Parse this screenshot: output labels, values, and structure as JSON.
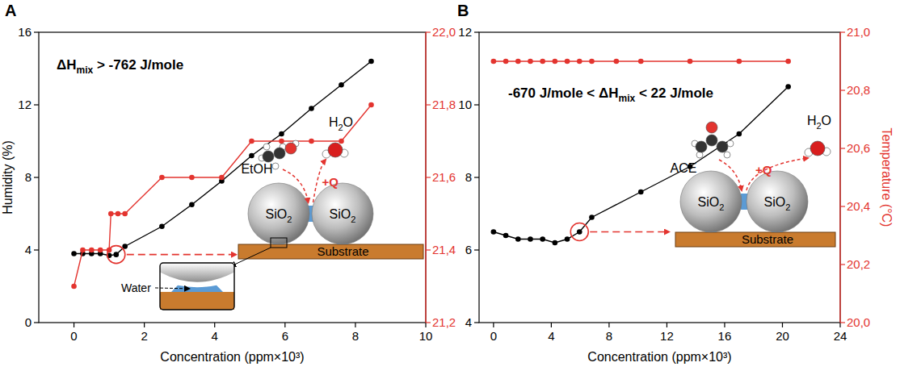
{
  "chart_data": [
    {
      "type": "line",
      "panel_label": "A",
      "x_label": "Concentration (ppm×10³)",
      "y_label": "Humidity (%)",
      "xlim": [
        -1,
        10
      ],
      "xticks": [
        0,
        2,
        4,
        6,
        8,
        10
      ],
      "ylim": [
        0,
        16
      ],
      "yticks": [
        0,
        4,
        8,
        12,
        16
      ],
      "y2lim": [
        21.2,
        22.0
      ],
      "y2ticks": [
        {
          "value": 21.2,
          "label": "21,2"
        },
        {
          "value": 21.4,
          "label": "21,4"
        },
        {
          "value": 21.6,
          "label": "21,6"
        },
        {
          "value": 21.8,
          "label": "21,8"
        },
        {
          "value": 22.0,
          "label": "22,0"
        }
      ],
      "grid": false,
      "series": [
        {
          "color": "#000000",
          "marker": "circle",
          "line_style": "solid",
          "x": [
            0,
            0.25,
            0.5,
            0.75,
            1.0,
            1.2,
            1.45,
            2.5,
            3.35,
            4.2,
            5.05,
            5.9,
            6.75,
            7.6,
            8.45
          ],
          "values": [
            3.8,
            3.8,
            3.8,
            3.8,
            3.7,
            3.75,
            4.2,
            5.3,
            6.5,
            7.8,
            9.2,
            10.4,
            11.8,
            13.1,
            14.4
          ]
        },
        {
          "color": "#e3342f",
          "marker": "circle",
          "line_style": "solid",
          "axis": "y2",
          "x": [
            0,
            0.25,
            0.5,
            0.75,
            1.0,
            1.05,
            1.25,
            1.45,
            2.5,
            3.35,
            4.2,
            5.05,
            5.9,
            6.75,
            7.6,
            8.45
          ],
          "values": [
            21.3,
            21.4,
            21.4,
            21.4,
            21.4,
            21.5,
            21.5,
            21.5,
            21.6,
            21.6,
            21.6,
            21.7,
            21.7,
            21.7,
            21.7,
            21.8
          ]
        }
      ],
      "annotations": {
        "enthalpy": {
          "prefix": "ΔH",
          "subscript": "mix",
          "suffix": " > -762 J/mole"
        },
        "molecule": "EtOH",
        "product": {
          "prefix": "H",
          "subscript": "2",
          "suffix": "O"
        },
        "heat": "+Q",
        "particle": {
          "prefix": "SiO",
          "subscript": "2"
        },
        "substrate": "Substrate",
        "water": "Water"
      }
    },
    {
      "type": "line",
      "panel_label": "B",
      "x_label": "Concentration (ppm×10³)",
      "y2_label": "Temperature (°C)",
      "xlim": [
        -1,
        24
      ],
      "xticks": [
        0,
        4,
        8,
        12,
        16,
        20,
        24
      ],
      "ylim": [
        4,
        12
      ],
      "yticks": [
        4,
        6,
        8,
        10,
        12
      ],
      "y2lim": [
        20.0,
        21.0
      ],
      "y2ticks": [
        {
          "value": 20.0,
          "label": "20,0"
        },
        {
          "value": 20.2,
          "label": "20,2"
        },
        {
          "value": 20.4,
          "label": "20,4"
        },
        {
          "value": 20.6,
          "label": "20,6"
        },
        {
          "value": 20.8,
          "label": "20,8"
        },
        {
          "value": 21.0,
          "label": "21,0"
        }
      ],
      "grid": false,
      "series": [
        {
          "color": "#000000",
          "marker": "circle",
          "line_style": "solid",
          "x": [
            0,
            0.85,
            1.7,
            2.55,
            3.4,
            4.25,
            5.1,
            5.95,
            6.8,
            10.2,
            13.6,
            17,
            20.4
          ],
          "values": [
            6.5,
            6.4,
            6.3,
            6.3,
            6.3,
            6.2,
            6.3,
            6.5,
            6.9,
            7.6,
            8.3,
            9.2,
            10.5
          ]
        },
        {
          "color": "#e3342f",
          "marker": "circle",
          "line_style": "solid",
          "axis": "y2",
          "x": [
            0,
            0.85,
            1.7,
            2.55,
            3.4,
            4.25,
            5.1,
            5.95,
            6.8,
            8.5,
            10.2,
            13.6,
            17,
            20.4
          ],
          "values": [
            20.9,
            20.9,
            20.9,
            20.9,
            20.9,
            20.9,
            20.9,
            20.9,
            20.9,
            20.9,
            20.9,
            20.9,
            20.9,
            20.9
          ]
        }
      ],
      "annotations": {
        "enthalpy": {
          "prefix": "-670 J/mole < ΔH",
          "subscript": "mix",
          "suffix": " < 22 J/mole"
        },
        "molecule": "ACE",
        "product": {
          "prefix": "H",
          "subscript": "2",
          "suffix": "O"
        },
        "heat": "+Q",
        "particle": {
          "prefix": "SiO",
          "subscript": "2"
        },
        "substrate": "Substrate"
      }
    }
  ]
}
